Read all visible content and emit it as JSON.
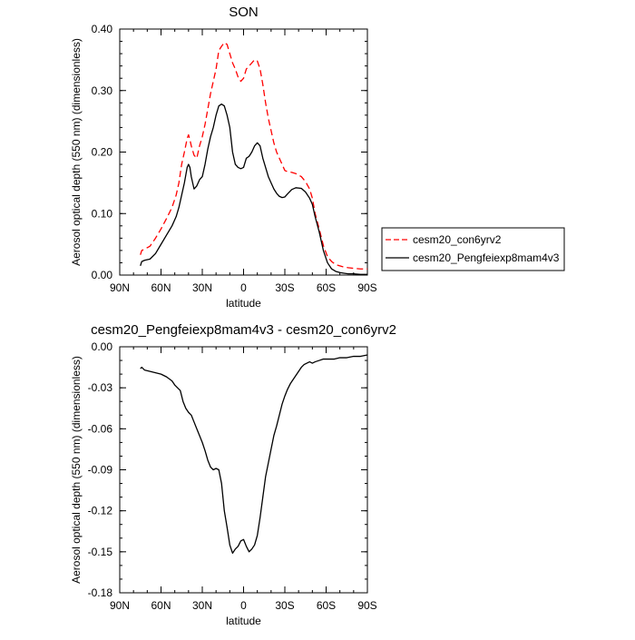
{
  "chart_data": [
    {
      "type": "line",
      "title": "SON",
      "xlabel": "latitude",
      "ylabel": "Aerosol optical depth (550 nm) (dimensionless)",
      "xlim": [
        90,
        -90
      ],
      "ylim": [
        0,
        0.4
      ],
      "x_ticks": [
        90,
        60,
        30,
        0,
        -30,
        -60,
        -90
      ],
      "x_tick_labels": [
        "90N",
        "60N",
        "30N",
        "0",
        "30S",
        "60S",
        "90S"
      ],
      "y_ticks": [
        0,
        0.1,
        0.2,
        0.3,
        0.4
      ],
      "y_tick_labels": [
        "0.00",
        "0.10",
        "0.20",
        "0.30",
        "0.40"
      ],
      "legend_position": "right",
      "series": [
        {
          "name": "cesm20_con6yrv2",
          "color": "#ff0000",
          "dash": "dashed",
          "x": [
            75,
            74,
            72,
            68,
            64,
            60,
            56,
            52,
            49,
            47,
            45,
            43,
            41,
            40,
            39,
            38,
            36,
            34,
            32,
            30,
            28,
            26,
            24,
            22,
            20,
            18,
            16,
            14,
            12,
            10,
            8,
            6,
            4,
            2,
            0,
            -2,
            -4,
            -6,
            -8,
            -10,
            -12,
            -14,
            -16,
            -18,
            -20,
            -22,
            -24,
            -26,
            -28,
            -30,
            -32,
            -35,
            -38,
            -42,
            -45,
            -48,
            -50,
            -52,
            -55,
            -58,
            -61,
            -64,
            -67,
            -70,
            -73,
            -76,
            -80,
            -85,
            -90
          ],
          "y": [
            0.033,
            0.04,
            0.042,
            0.047,
            0.06,
            0.075,
            0.092,
            0.11,
            0.13,
            0.15,
            0.18,
            0.2,
            0.222,
            0.228,
            0.22,
            0.21,
            0.195,
            0.19,
            0.21,
            0.225,
            0.245,
            0.27,
            0.295,
            0.315,
            0.335,
            0.365,
            0.372,
            0.378,
            0.375,
            0.36,
            0.345,
            0.335,
            0.322,
            0.315,
            0.32,
            0.335,
            0.34,
            0.345,
            0.35,
            0.348,
            0.335,
            0.31,
            0.28,
            0.255,
            0.235,
            0.215,
            0.2,
            0.19,
            0.18,
            0.17,
            0.168,
            0.167,
            0.165,
            0.16,
            0.152,
            0.14,
            0.125,
            0.1,
            0.075,
            0.048,
            0.03,
            0.022,
            0.017,
            0.015,
            0.013,
            0.012,
            0.011,
            0.01,
            0.01
          ]
        },
        {
          "name": "cesm20_Pengfeiexp8mam4v3",
          "color": "#000000",
          "dash": "solid",
          "x": [
            75,
            74,
            72,
            68,
            64,
            60,
            56,
            52,
            49,
            47,
            45,
            43,
            41,
            40,
            39,
            38,
            36,
            34,
            32,
            30,
            28,
            26,
            24,
            22,
            20,
            18,
            16,
            14,
            12,
            10,
            8,
            6,
            4,
            2,
            0,
            -2,
            -4,
            -6,
            -8,
            -10,
            -12,
            -14,
            -16,
            -18,
            -20,
            -22,
            -24,
            -26,
            -28,
            -30,
            -32,
            -35,
            -38,
            -42,
            -45,
            -48,
            -50,
            -52,
            -55,
            -58,
            -61,
            -64,
            -67,
            -70,
            -73,
            -76,
            -80,
            -85,
            -90
          ],
          "y": [
            0.015,
            0.022,
            0.024,
            0.026,
            0.035,
            0.05,
            0.065,
            0.08,
            0.095,
            0.11,
            0.13,
            0.15,
            0.175,
            0.18,
            0.175,
            0.16,
            0.14,
            0.145,
            0.155,
            0.16,
            0.18,
            0.205,
            0.225,
            0.24,
            0.26,
            0.275,
            0.278,
            0.275,
            0.26,
            0.24,
            0.2,
            0.18,
            0.175,
            0.173,
            0.175,
            0.19,
            0.193,
            0.2,
            0.21,
            0.215,
            0.21,
            0.19,
            0.175,
            0.16,
            0.15,
            0.14,
            0.133,
            0.128,
            0.126,
            0.127,
            0.132,
            0.139,
            0.142,
            0.141,
            0.135,
            0.125,
            0.115,
            0.095,
            0.07,
            0.04,
            0.02,
            0.01,
            0.006,
            0.004,
            0.003,
            0.002,
            0.002,
            0.001,
            0.001
          ]
        }
      ]
    },
    {
      "type": "line",
      "title": "cesm20_Pengfeiexp8mam4v3 - cesm20_con6yrv2",
      "xlabel": "latitude",
      "ylabel": "Aerosol optical depth (550 nm) (dimensionless)",
      "xlim": [
        90,
        -90
      ],
      "ylim": [
        -0.18,
        0
      ],
      "x_ticks": [
        90,
        60,
        30,
        0,
        -30,
        -60,
        -90
      ],
      "x_tick_labels": [
        "90N",
        "60N",
        "30N",
        "0",
        "30S",
        "60S",
        "90S"
      ],
      "y_ticks": [
        0,
        -0.03,
        -0.06,
        -0.09,
        -0.12,
        -0.15,
        -0.18
      ],
      "y_tick_labels": [
        "0.00",
        "-0.03",
        "-0.06",
        "-0.09",
        "-0.12",
        "-0.15",
        "-0.18"
      ],
      "series": [
        {
          "color": "#000000",
          "dash": "solid",
          "x": [
            75,
            74,
            72,
            68,
            64,
            60,
            56,
            52,
            50,
            46,
            44,
            42,
            40,
            38,
            36,
            34,
            32,
            30,
            28,
            26,
            24,
            22,
            20,
            18,
            16,
            14,
            12,
            10,
            8,
            6,
            4,
            2,
            0,
            -2,
            -4,
            -6,
            -8,
            -10,
            -12,
            -14,
            -16,
            -18,
            -20,
            -22,
            -24,
            -26,
            -28,
            -30,
            -32,
            -34,
            -36,
            -38,
            -40,
            -42,
            -44,
            -46,
            -48,
            -50,
            -52,
            -55,
            -58,
            -62,
            -66,
            -70,
            -75,
            -80,
            -85,
            -90
          ],
          "y": [
            -0.016,
            -0.015,
            -0.017,
            -0.018,
            -0.019,
            -0.02,
            -0.022,
            -0.025,
            -0.028,
            -0.032,
            -0.04,
            -0.045,
            -0.048,
            -0.05,
            -0.055,
            -0.06,
            -0.065,
            -0.07,
            -0.076,
            -0.083,
            -0.088,
            -0.09,
            -0.089,
            -0.09,
            -0.1,
            -0.12,
            -0.132,
            -0.145,
            -0.151,
            -0.148,
            -0.146,
            -0.142,
            -0.141,
            -0.146,
            -0.15,
            -0.148,
            -0.145,
            -0.138,
            -0.125,
            -0.11,
            -0.095,
            -0.085,
            -0.075,
            -0.065,
            -0.058,
            -0.05,
            -0.042,
            -0.036,
            -0.031,
            -0.027,
            -0.024,
            -0.021,
            -0.018,
            -0.015,
            -0.013,
            -0.012,
            -0.011,
            -0.012,
            -0.011,
            -0.01,
            -0.009,
            -0.009,
            -0.009,
            -0.008,
            -0.008,
            -0.007,
            -0.007,
            -0.006
          ]
        }
      ]
    }
  ]
}
